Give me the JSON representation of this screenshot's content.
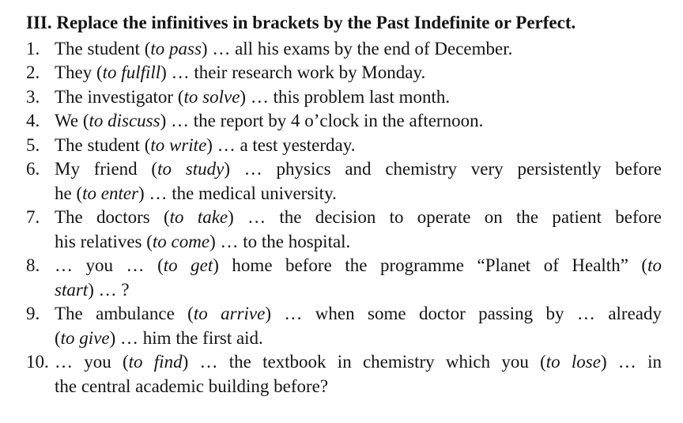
{
  "page": {
    "background": "#ffffff",
    "text_color": "#141414"
  },
  "title": "III. Replace the infinitives in brackets by the Past Indefinite or Perfect.",
  "exercise": {
    "items": [
      {
        "number": "1.",
        "lines": [
          {
            "j": false,
            "segments": [
              {
                "t": "The student ("
              },
              {
                "t": "to pass",
                "i": true
              },
              {
                "t": ") … all his exams by the end of December."
              }
            ]
          }
        ]
      },
      {
        "number": "2.",
        "lines": [
          {
            "j": false,
            "segments": [
              {
                "t": "They ("
              },
              {
                "t": "to fulfill",
                "i": true
              },
              {
                "t": ") … their research work by Monday."
              }
            ]
          }
        ]
      },
      {
        "number": "3.",
        "lines": [
          {
            "j": false,
            "segments": [
              {
                "t": "The investigator ("
              },
              {
                "t": "to solve",
                "i": true
              },
              {
                "t": ") … this problem last month."
              }
            ]
          }
        ]
      },
      {
        "number": "4.",
        "lines": [
          {
            "j": false,
            "segments": [
              {
                "t": "We ("
              },
              {
                "t": "to discuss",
                "i": true
              },
              {
                "t": ") … the report by 4 o’clock in the afternoon."
              }
            ]
          }
        ]
      },
      {
        "number": "5.",
        "lines": [
          {
            "j": false,
            "segments": [
              {
                "t": "The student ("
              },
              {
                "t": "to write",
                "i": true
              },
              {
                "t": ") … a test yesterday."
              }
            ]
          }
        ]
      },
      {
        "number": "6.",
        "lines": [
          {
            "j": true,
            "segments": [
              {
                "t": "My friend ("
              },
              {
                "t": "to study",
                "i": true
              },
              {
                "t": ") … physics and chemistry very persistently before"
              }
            ]
          },
          {
            "j": false,
            "segments": [
              {
                "t": "he ("
              },
              {
                "t": "to enter",
                "i": true
              },
              {
                "t": ") … the medical university."
              }
            ]
          }
        ]
      },
      {
        "number": "7.",
        "lines": [
          {
            "j": true,
            "segments": [
              {
                "t": "The doctors ("
              },
              {
                "t": "to take",
                "i": true
              },
              {
                "t": ") … the decision to operate on the patient before"
              }
            ]
          },
          {
            "j": false,
            "segments": [
              {
                "t": "his relatives ("
              },
              {
                "t": "to come",
                "i": true
              },
              {
                "t": ") … to the hospital."
              }
            ]
          }
        ]
      },
      {
        "number": "8.",
        "lines": [
          {
            "j": true,
            "segments": [
              {
                "t": "… you … ("
              },
              {
                "t": "to get",
                "i": true
              },
              {
                "t": ") home before the programme “Planet of Health” ("
              },
              {
                "t": "to",
                "i": true
              }
            ]
          },
          {
            "j": false,
            "segments": [
              {
                "t": "start",
                "i": true
              },
              {
                "t": ") … ?"
              }
            ]
          }
        ]
      },
      {
        "number": "9.",
        "lines": [
          {
            "j": true,
            "segments": [
              {
                "t": "The ambulance ("
              },
              {
                "t": "to arrive",
                "i": true
              },
              {
                "t": ") … when some doctor passing by … already"
              }
            ]
          },
          {
            "j": false,
            "segments": [
              {
                "t": "("
              },
              {
                "t": "to give",
                "i": true
              },
              {
                "t": ") … him the first aid."
              }
            ]
          }
        ]
      },
      {
        "number": "10.",
        "lines": [
          {
            "j": true,
            "segments": [
              {
                "t": "… you ("
              },
              {
                "t": "to find",
                "i": true
              },
              {
                "t": ") … the textbook in chemistry which you ("
              },
              {
                "t": "to lose",
                "i": true
              },
              {
                "t": ") … in"
              }
            ]
          },
          {
            "j": false,
            "segments": [
              {
                "t": "the central academic building before?"
              }
            ]
          }
        ]
      }
    ]
  }
}
